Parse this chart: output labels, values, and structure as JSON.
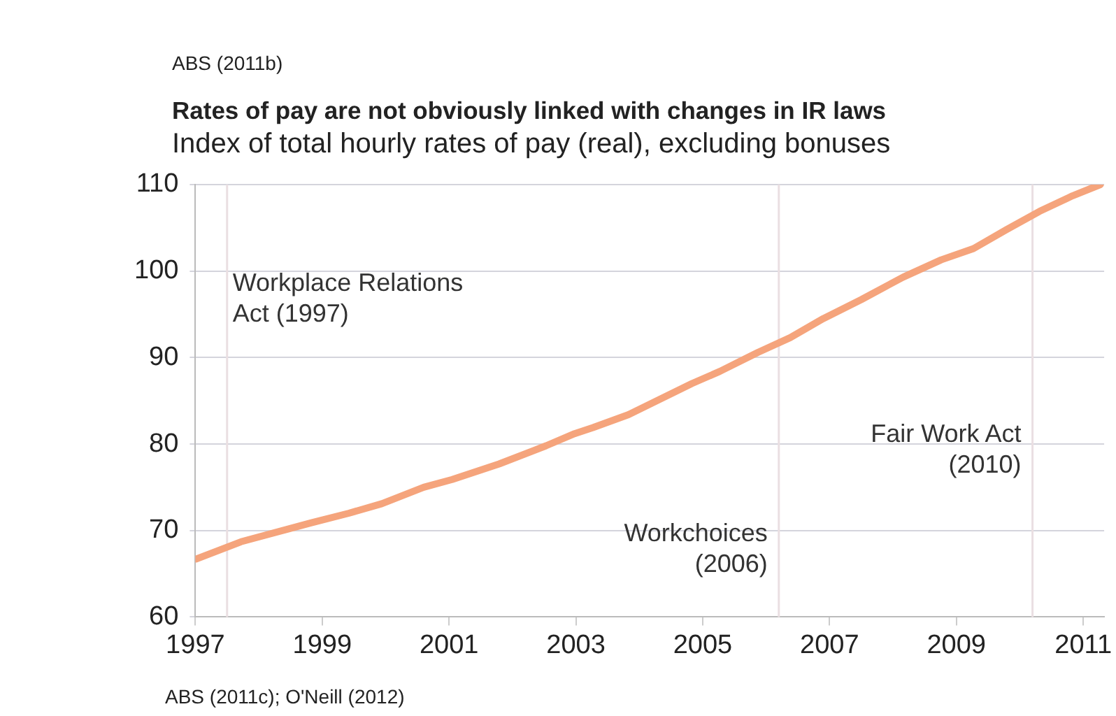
{
  "chart_data": {
    "type": "line",
    "title": "Rates of pay are not obviously linked with changes in IR laws",
    "subtitle": "Index of total hourly rates of pay (real), excluding bonuses",
    "annotations": [
      "ABS (2011b)",
      "ABS (2011c); O'Neill (2012)"
    ],
    "series": [
      {
        "color": "#f5a47c",
        "x": [
          1997.01,
          1997.72,
          1998.83,
          1999.42,
          1999.94,
          2000.6,
          2001.05,
          2001.79,
          2002.53,
          2002.98,
          2003.27,
          2003.83,
          2004.83,
          2005.27,
          2005.87,
          2006.38,
          2006.9,
          2007.5,
          2008.16,
          2008.76,
          2009.27,
          2009.79,
          2010.31,
          2010.83,
          2011.27
        ],
        "values": [
          66.7,
          68.7,
          70.9,
          72.0,
          73.1,
          75.0,
          75.9,
          77.7,
          79.8,
          81.2,
          81.9,
          83.4,
          87.0,
          88.4,
          90.6,
          92.3,
          94.5,
          96.7,
          99.3,
          101.3,
          102.6,
          104.8,
          106.9,
          108.7,
          110.0
        ]
      }
    ],
    "xlim": [
      1997,
      2011.33
    ],
    "xticks": [
      1997,
      1999,
      2001,
      2003,
      2005,
      2007,
      2009,
      2011
    ],
    "ylim": [
      60,
      110
    ],
    "yticks": [
      60,
      70,
      80,
      90,
      100,
      110
    ],
    "ref_lines": [
      {
        "axis": "x",
        "value": 1997.5,
        "label": "Workplace Relations Act (1997)",
        "color": "#eadfe2"
      },
      {
        "axis": "x",
        "value": 2006.2,
        "label": "Workchoices (2006)",
        "color": "#eadfe2"
      },
      {
        "axis": "x",
        "value": 2010.2,
        "label": "Fair Work Act (2010)",
        "color": "#eadfe2"
      }
    ],
    "grid": "y",
    "legend": false,
    "marker": "none",
    "line_style": "solid"
  }
}
